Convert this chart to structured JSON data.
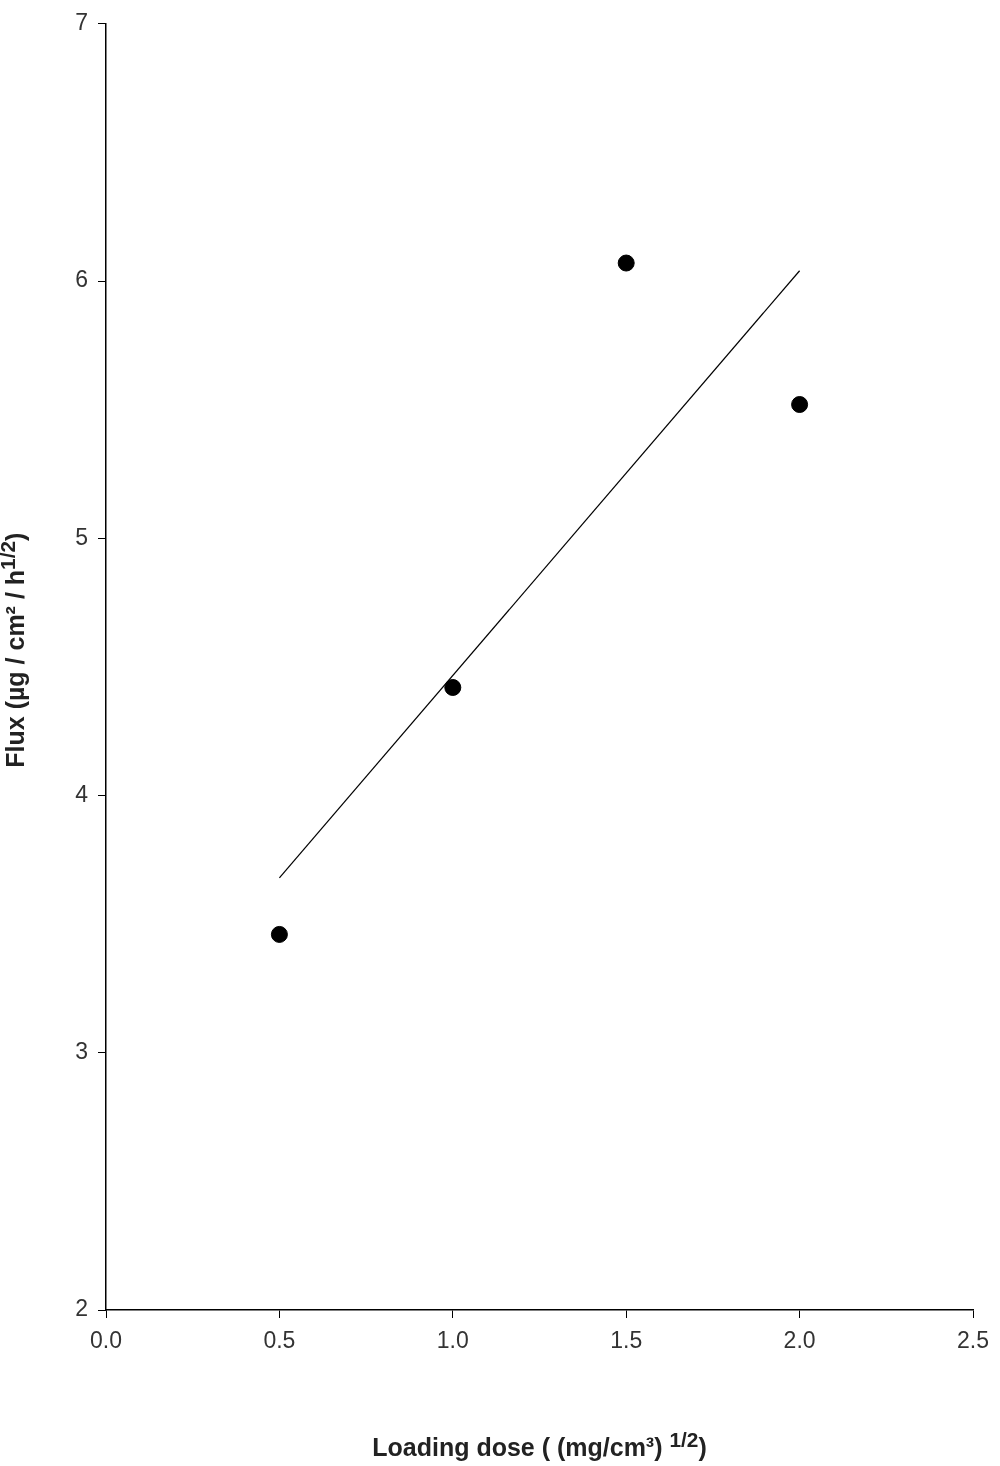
{
  "chart_data": {
    "type": "scatter",
    "xlabel": "Loading dose ( (mg/cm³) $^{1/2}$)",
    "ylabel": "Flux (µg / cm² / h$^{1/2}$)",
    "x": [
      0.5,
      1.0,
      1.5,
      2.0
    ],
    "series": [
      {
        "color": "#000000",
        "values": [
          3.46,
          4.42,
          6.07,
          5.52
        ]
      },
      {
        "type": "line",
        "x": [
          0.5,
          2.0
        ],
        "values": [
          3.68,
          6.04
        ],
        "color": "#000000",
        "marker": "none"
      }
    ],
    "xlim": [
      0,
      2.5
    ],
    "xticks": [
      {
        "value": 0,
        "label": "0.0"
      },
      {
        "value": 0.5,
        "label": "0.5"
      },
      {
        "value": 1,
        "label": "1.0"
      },
      {
        "value": 1.5,
        "label": "1.5"
      },
      {
        "value": 2,
        "label": "2.0"
      },
      {
        "value": 2.5,
        "label": "2.5"
      }
    ],
    "ylim": [
      2,
      7
    ],
    "yticks": [
      2,
      3,
      4,
      5,
      6,
      7
    ],
    "grid": false,
    "legend": false,
    "marker": "circle",
    "line_style": "solid"
  }
}
